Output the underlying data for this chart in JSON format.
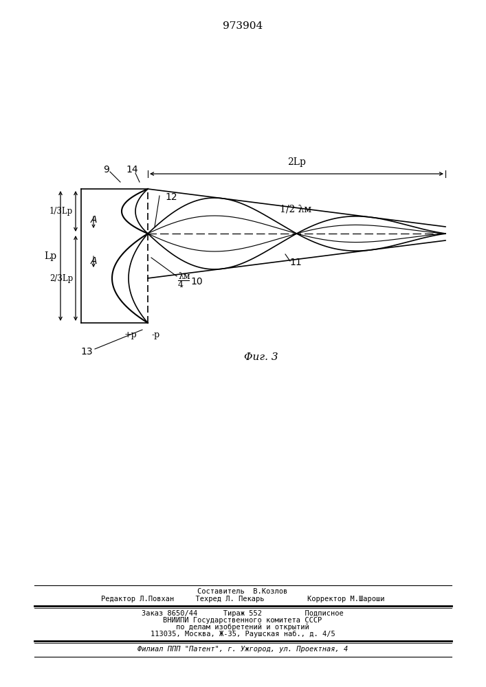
{
  "title": "973904",
  "fig_label": "Φиг. 3",
  "bg_color": "#ffffff",
  "line_color": "#000000",
  "footer_lines": [
    "Составитель  В.Козлов",
    "Редактор Л.Повхан     Техред Л. Пекарь          Корректор М.Шароши",
    "Заказ 8650/44      Тираж 552          Подписное",
    "ВНИИПИ Государственного комитета СССР",
    "по делам изобретений и открытий",
    "113035, Москва, Ж-35, Раушская наб., д. 4/5",
    "Филиал ППП \"Патент\", г. Ужгород, ул. Проектная, 4"
  ]
}
